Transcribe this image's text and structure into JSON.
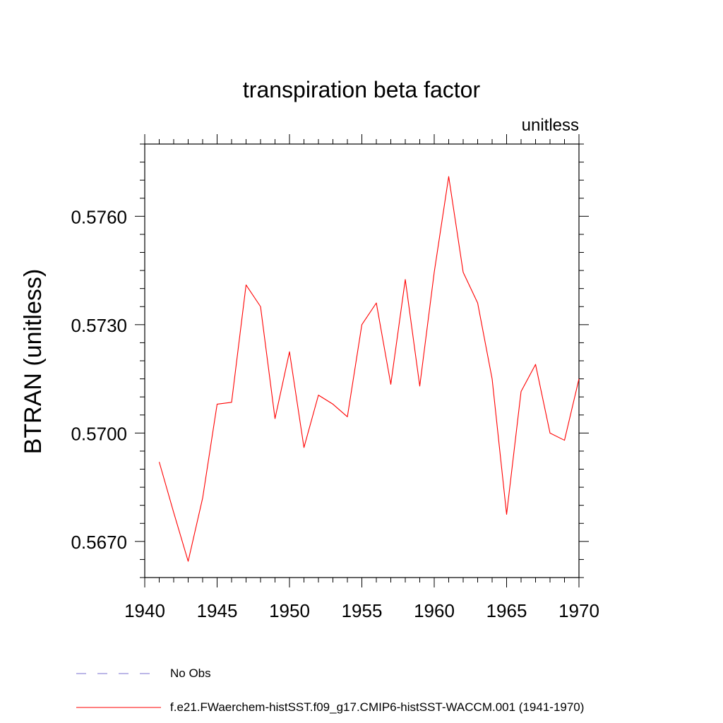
{
  "chart_data": {
    "type": "line",
    "title": "transpiration beta factor",
    "units_label": "unitless",
    "xlabel": "",
    "ylabel": "BTRAN  (unitless)",
    "xlim": [
      1940,
      1970
    ],
    "ylim": [
      0.566,
      0.578
    ],
    "x_ticks": [
      1940,
      1945,
      1950,
      1955,
      1960,
      1965,
      1970
    ],
    "x_tick_labels": [
      "1940",
      "1945",
      "1950",
      "1955",
      "1960",
      "1965",
      "1970"
    ],
    "y_ticks": [
      0.567,
      0.57,
      0.573,
      0.576
    ],
    "y_tick_labels": [
      "0.5670",
      "0.5700",
      "0.5730",
      "0.5760"
    ],
    "grid": false,
    "legend_position": "bottom",
    "series": [
      {
        "name": "f.e21.FWaerchem-histSST.f09_g17.CMIP6-histSST-WACCM.001 (1941-1970)",
        "color": "#ff0000",
        "line_style": "solid",
        "x": [
          1941,
          1942,
          1943,
          1944,
          1945,
          1946,
          1947,
          1948,
          1949,
          1950,
          1951,
          1952,
          1953,
          1954,
          1955,
          1956,
          1957,
          1958,
          1959,
          1960,
          1961,
          1962,
          1963,
          1964,
          1965,
          1966,
          1967,
          1968,
          1969,
          1970
        ],
        "values": [
          0.5692,
          0.5678,
          0.56645,
          0.5682,
          0.5708,
          0.57085,
          0.5741,
          0.5735,
          0.5704,
          0.57225,
          0.5696,
          0.57105,
          0.5708,
          0.57045,
          0.573,
          0.5736,
          0.57135,
          0.57425,
          0.5713,
          0.57445,
          0.5771,
          0.57445,
          0.5736,
          0.5715,
          0.56775,
          0.57115,
          0.5719,
          0.57,
          0.5698,
          0.5715
        ]
      }
    ],
    "legend": [
      {
        "label": "No Obs",
        "color": "#7a6fd0",
        "line_style": "dashed"
      },
      {
        "label": "f.e21.FWaerchem-histSST.f09_g17.CMIP6-histSST-WACCM.001 (1941-1970)",
        "color": "#ff0000",
        "line_style": "solid"
      }
    ]
  }
}
